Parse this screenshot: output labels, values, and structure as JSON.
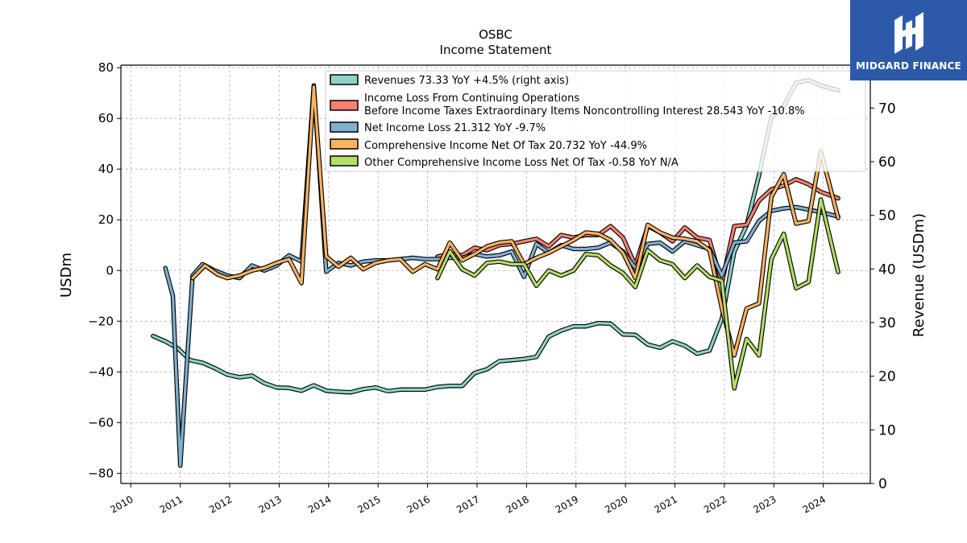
{
  "brand": {
    "name": "MIDGARD FINANCE",
    "bg_color": "#2c5aa8"
  },
  "chart_data": {
    "type": "line",
    "title": "OSBC",
    "subtitle": "Income Statement",
    "ylabel": "USDm",
    "y2label": "Revenue (USDm)",
    "ylim": [
      -84,
      81
    ],
    "y2lim": [
      0,
      78
    ],
    "yticks": [
      -80,
      -60,
      -40,
      -20,
      0,
      20,
      40,
      60,
      80
    ],
    "y2ticks": [
      0,
      10,
      20,
      30,
      40,
      50,
      60,
      70
    ],
    "xlim": [
      2009.8,
      2024.95
    ],
    "xticks": [
      2010,
      2011,
      2012,
      2013,
      2014,
      2015,
      2016,
      2017,
      2018,
      2019,
      2020,
      2021,
      2022,
      2023,
      2024
    ],
    "grid": true,
    "legend_position": "top-right",
    "series": [
      {
        "name": "Revenues",
        "legend_label": "Revenues  73.33 YoY +4.5% (right axis)",
        "axis": "right",
        "color": "#8dd3c7",
        "points": [
          [
            2010.45,
            27.5
          ],
          [
            2010.7,
            26.5
          ],
          [
            2010.95,
            25.2
          ],
          [
            2011.2,
            23.0
          ],
          [
            2011.45,
            22.5
          ],
          [
            2011.7,
            21.5
          ],
          [
            2011.95,
            20.3
          ],
          [
            2012.2,
            19.8
          ],
          [
            2012.45,
            20.1
          ],
          [
            2012.7,
            18.7
          ],
          [
            2012.95,
            17.9
          ],
          [
            2013.2,
            17.8
          ],
          [
            2013.45,
            17.3
          ],
          [
            2013.7,
            18.3
          ],
          [
            2013.95,
            17.3
          ],
          [
            2014.2,
            17.1
          ],
          [
            2014.45,
            17.0
          ],
          [
            2014.7,
            17.6
          ],
          [
            2014.95,
            17.9
          ],
          [
            2015.2,
            17.2
          ],
          [
            2015.45,
            17.5
          ],
          [
            2015.7,
            17.5
          ],
          [
            2015.95,
            17.5
          ],
          [
            2016.2,
            18.0
          ],
          [
            2016.45,
            18.2
          ],
          [
            2016.7,
            18.2
          ],
          [
            2016.95,
            20.6
          ],
          [
            2017.2,
            21.3
          ],
          [
            2017.45,
            22.8
          ],
          [
            2017.7,
            23.0
          ],
          [
            2017.95,
            23.2
          ],
          [
            2018.2,
            23.6
          ],
          [
            2018.45,
            27.4
          ],
          [
            2018.7,
            28.5
          ],
          [
            2018.95,
            29.3
          ],
          [
            2019.2,
            29.3
          ],
          [
            2019.45,
            29.9
          ],
          [
            2019.7,
            29.8
          ],
          [
            2019.95,
            27.8
          ],
          [
            2020.2,
            27.7
          ],
          [
            2020.45,
            25.9
          ],
          [
            2020.7,
            25.3
          ],
          [
            2020.95,
            26.5
          ],
          [
            2021.2,
            25.7
          ],
          [
            2021.45,
            24.2
          ],
          [
            2021.7,
            24.8
          ],
          [
            2021.95,
            30.7
          ],
          [
            2022.2,
            43.2
          ],
          [
            2022.45,
            48.1
          ],
          [
            2022.7,
            57.5
          ],
          [
            2022.95,
            68.3
          ],
          [
            2023.2,
            70.3
          ],
          [
            2023.45,
            74.7
          ],
          [
            2023.7,
            75.2
          ],
          [
            2023.95,
            74.2
          ],
          [
            2024.3,
            73.3
          ]
        ]
      },
      {
        "name": "Income Loss From Continuing Operations Before Income Taxes Extraordinary Items Noncontrolling Interest",
        "legend_label_line1": "Income Loss From Continuing Operations",
        "legend_label_line2": "Before Income Taxes Extraordinary Items Noncontrolling Interest  28.543 YoY -10.8%",
        "axis": "left",
        "color": "#fb8072",
        "points": [
          [
            2016.2,
            5.5
          ],
          [
            2016.45,
            6.5
          ],
          [
            2016.7,
            6.0
          ],
          [
            2016.95,
            9.0
          ],
          [
            2017.2,
            8.0
          ],
          [
            2017.45,
            10.0
          ],
          [
            2017.7,
            10.5
          ],
          [
            2017.95,
            11.5
          ],
          [
            2018.2,
            12.5
          ],
          [
            2018.45,
            9.5
          ],
          [
            2018.7,
            14.0
          ],
          [
            2018.95,
            13.0
          ],
          [
            2019.2,
            14.0
          ],
          [
            2019.45,
            14.0
          ],
          [
            2019.7,
            17.5
          ],
          [
            2019.95,
            13.0
          ],
          [
            2020.2,
            2.0
          ],
          [
            2020.45,
            17.5
          ],
          [
            2020.7,
            15.0
          ],
          [
            2020.95,
            11.5
          ],
          [
            2021.2,
            17.0
          ],
          [
            2021.45,
            13.0
          ],
          [
            2021.7,
            12.0
          ],
          [
            2021.95,
            -5.0
          ],
          [
            2022.2,
            17.5
          ],
          [
            2022.45,
            18.0
          ],
          [
            2022.7,
            27.5
          ],
          [
            2022.95,
            32.0
          ],
          [
            2023.2,
            33.5
          ],
          [
            2023.45,
            36.0
          ],
          [
            2023.7,
            34.0
          ],
          [
            2023.95,
            31.0
          ],
          [
            2024.3,
            28.5
          ]
        ]
      },
      {
        "name": "Net Income Loss",
        "legend_label": "Net Income Loss  21.312 YoY -9.7%",
        "axis": "left",
        "color": "#80b1d3",
        "points": [
          [
            2010.7,
            1.0
          ],
          [
            2010.85,
            -10.0
          ],
          [
            2011.0,
            -77.0
          ],
          [
            2011.25,
            -2.0
          ],
          [
            2011.45,
            2.5
          ],
          [
            2011.7,
            0.0
          ],
          [
            2011.95,
            -2.0
          ],
          [
            2012.2,
            -3.0
          ],
          [
            2012.45,
            2.0
          ],
          [
            2012.7,
            0.0
          ],
          [
            2012.95,
            2.0
          ],
          [
            2013.2,
            6.0
          ],
          [
            2013.45,
            3.5
          ],
          [
            2013.7,
            73.0
          ],
          [
            2013.95,
            -0.5
          ],
          [
            2014.2,
            3.0
          ],
          [
            2014.45,
            2.0
          ],
          [
            2014.7,
            3.5
          ],
          [
            2014.95,
            4.0
          ],
          [
            2015.2,
            4.0
          ],
          [
            2015.45,
            4.5
          ],
          [
            2015.7,
            5.0
          ],
          [
            2015.95,
            4.5
          ],
          [
            2016.2,
            4.5
          ],
          [
            2016.45,
            5.0
          ],
          [
            2016.7,
            5.0
          ],
          [
            2016.95,
            6.5
          ],
          [
            2017.2,
            5.5
          ],
          [
            2017.45,
            6.0
          ],
          [
            2017.7,
            7.5
          ],
          [
            2017.95,
            -2.5
          ],
          [
            2018.2,
            10.5
          ],
          [
            2018.45,
            7.0
          ],
          [
            2018.7,
            10.0
          ],
          [
            2018.95,
            8.5
          ],
          [
            2019.2,
            8.5
          ],
          [
            2019.45,
            9.0
          ],
          [
            2019.7,
            11.0
          ],
          [
            2019.95,
            7.5
          ],
          [
            2020.2,
            1.0
          ],
          [
            2020.45,
            10.5
          ],
          [
            2020.7,
            11.0
          ],
          [
            2020.95,
            7.5
          ],
          [
            2021.2,
            11.5
          ],
          [
            2021.45,
            10.0
          ],
          [
            2021.7,
            8.5
          ],
          [
            2021.95,
            -2.0
          ],
          [
            2022.2,
            11.0
          ],
          [
            2022.45,
            11.5
          ],
          [
            2022.7,
            19.5
          ],
          [
            2022.95,
            23.5
          ],
          [
            2023.2,
            24.5
          ],
          [
            2023.45,
            25.0
          ],
          [
            2023.7,
            24.0
          ],
          [
            2023.95,
            23.0
          ],
          [
            2024.3,
            21.3
          ]
        ]
      },
      {
        "name": "Comprehensive Income Net Of Tax",
        "legend_label": "Comprehensive Income Net Of Tax  20.732 YoY -44.9%",
        "axis": "left",
        "color": "#fdb462",
        "points": [
          [
            2011.25,
            -3.0
          ],
          [
            2011.5,
            2.0
          ],
          [
            2011.75,
            -1.5
          ],
          [
            2011.95,
            -3.0
          ],
          [
            2012.2,
            -2.0
          ],
          [
            2012.45,
            0.0
          ],
          [
            2012.7,
            1.0
          ],
          [
            2012.95,
            3.0
          ],
          [
            2013.2,
            4.5
          ],
          [
            2013.45,
            -5.0
          ],
          [
            2013.7,
            72.5
          ],
          [
            2013.95,
            5.5
          ],
          [
            2014.2,
            1.5
          ],
          [
            2014.45,
            5.0
          ],
          [
            2014.7,
            0.5
          ],
          [
            2014.95,
            3.0
          ],
          [
            2015.2,
            4.0
          ],
          [
            2015.45,
            4.5
          ],
          [
            2015.7,
            -0.5
          ],
          [
            2015.95,
            2.5
          ],
          [
            2016.2,
            0.5
          ],
          [
            2016.45,
            11.0
          ],
          [
            2016.7,
            4.0
          ],
          [
            2016.95,
            6.5
          ],
          [
            2017.2,
            9.5
          ],
          [
            2017.45,
            11.0
          ],
          [
            2017.7,
            11.5
          ],
          [
            2017.95,
            2.5
          ],
          [
            2018.2,
            5.0
          ],
          [
            2018.45,
            7.0
          ],
          [
            2018.7,
            9.5
          ],
          [
            2018.95,
            12.0
          ],
          [
            2019.2,
            15.0
          ],
          [
            2019.45,
            14.5
          ],
          [
            2019.7,
            12.0
          ],
          [
            2019.95,
            7.0
          ],
          [
            2020.2,
            -3.0
          ],
          [
            2020.45,
            18.0
          ],
          [
            2020.7,
            15.0
          ],
          [
            2020.95,
            13.0
          ],
          [
            2021.2,
            12.5
          ],
          [
            2021.45,
            11.5
          ],
          [
            2021.7,
            8.0
          ],
          [
            2021.95,
            -15.0
          ],
          [
            2022.2,
            -33.5
          ],
          [
            2022.45,
            -15.0
          ],
          [
            2022.7,
            -13.0
          ],
          [
            2022.95,
            29.0
          ],
          [
            2023.2,
            38.0
          ],
          [
            2023.45,
            18.5
          ],
          [
            2023.7,
            19.5
          ],
          [
            2023.95,
            47.0
          ],
          [
            2024.3,
            20.7
          ]
        ]
      },
      {
        "name": "Other Comprehensive Income Loss Net Of Tax",
        "legend_label": "Other Comprehensive Income Loss Net Of Tax  -0.58 YoY N/A",
        "axis": "left",
        "color": "#b3de69",
        "points": [
          [
            2016.2,
            -3.0
          ],
          [
            2016.45,
            7.5
          ],
          [
            2016.7,
            0.5
          ],
          [
            2016.95,
            -2.0
          ],
          [
            2017.2,
            3.0
          ],
          [
            2017.45,
            3.5
          ],
          [
            2017.7,
            2.5
          ],
          [
            2017.95,
            2.5
          ],
          [
            2018.2,
            -6.0
          ],
          [
            2018.45,
            0.0
          ],
          [
            2018.7,
            -2.0
          ],
          [
            2018.95,
            0.0
          ],
          [
            2019.2,
            6.5
          ],
          [
            2019.45,
            6.0
          ],
          [
            2019.7,
            2.0
          ],
          [
            2019.95,
            -1.0
          ],
          [
            2020.2,
            -6.5
          ],
          [
            2020.45,
            8.0
          ],
          [
            2020.7,
            4.0
          ],
          [
            2020.95,
            2.5
          ],
          [
            2021.2,
            -3.0
          ],
          [
            2021.45,
            2.0
          ],
          [
            2021.7,
            -2.5
          ],
          [
            2021.95,
            -4.0
          ],
          [
            2022.2,
            -46.5
          ],
          [
            2022.45,
            -27.0
          ],
          [
            2022.7,
            -33.5
          ],
          [
            2022.95,
            4.5
          ],
          [
            2023.2,
            14.5
          ],
          [
            2023.45,
            -7.0
          ],
          [
            2023.7,
            -4.5
          ],
          [
            2023.95,
            28.0
          ],
          [
            2024.3,
            -0.6
          ]
        ]
      }
    ]
  }
}
